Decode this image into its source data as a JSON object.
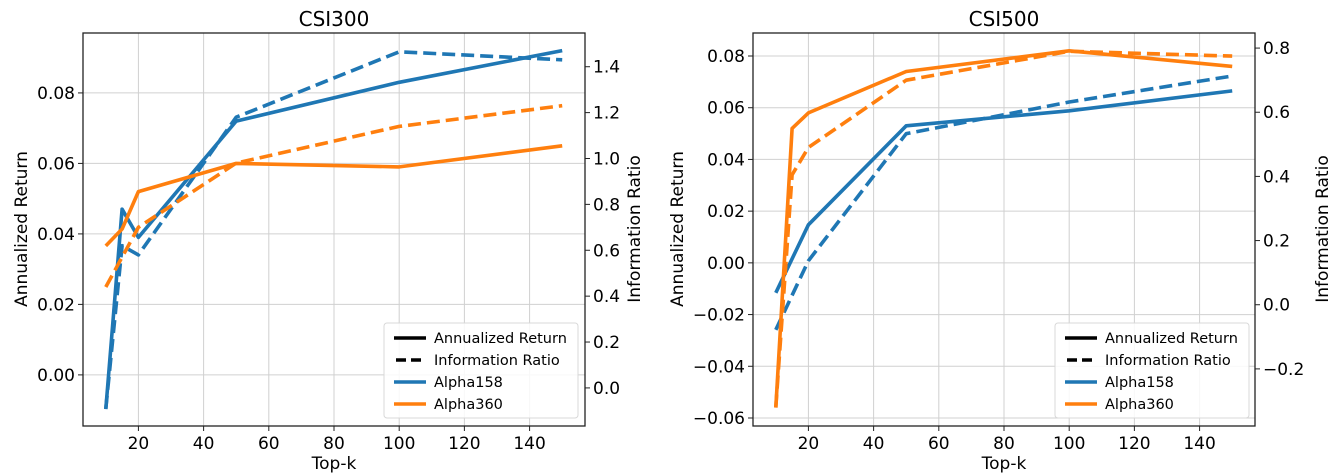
{
  "chart_data": [
    {
      "type": "line",
      "title": "CSI300",
      "xlabel": "Top-k",
      "ylabel": "Annualized Return",
      "ylabel_right": "Information Ratio",
      "xlim": [
        3,
        157
      ],
      "ylim": [
        -0.0145,
        0.097
      ],
      "ylim_right": [
        -0.166,
        1.547
      ],
      "xticks": [
        20,
        40,
        60,
        80,
        100,
        120,
        140
      ],
      "yticks": [
        0.0,
        0.02,
        0.04,
        0.06,
        0.08
      ],
      "yticks_right": [
        0.0,
        0.2,
        0.4,
        0.6,
        0.8,
        1.0,
        1.2,
        1.4
      ],
      "xtick_labels": [
        "20",
        "40",
        "60",
        "80",
        "100",
        "120",
        "140"
      ],
      "ytick_labels": [
        "0.00",
        "0.02",
        "0.04",
        "0.06",
        "0.08"
      ],
      "ytick_labels_right": [
        "0.0",
        "0.2",
        "0.4",
        "0.6",
        "0.8",
        "1.0",
        "1.2",
        "1.4"
      ],
      "grid": true,
      "legend_position": "lower-right",
      "series": [
        {
          "name": "Alpha158",
          "metric": "Annualized Return",
          "axis": "left",
          "style": "solid",
          "color": "#1f77b4",
          "x": [
            10,
            15,
            20,
            50,
            100,
            150
          ],
          "values": [
            -0.0097,
            0.047,
            0.039,
            0.072,
            0.083,
            0.092
          ]
        },
        {
          "name": "Alpha158",
          "metric": "Information Ratio",
          "axis": "right",
          "style": "dashed",
          "color": "#1f77b4",
          "x": [
            10,
            15,
            20,
            50,
            100,
            150
          ],
          "values": [
            -0.09,
            0.62,
            0.58,
            1.18,
            1.465,
            1.43
          ]
        },
        {
          "name": "Alpha360",
          "metric": "Annualized Return",
          "axis": "left",
          "style": "solid",
          "color": "#ff7f0e",
          "x": [
            10,
            15,
            20,
            50,
            100,
            150
          ],
          "values": [
            0.0366,
            0.0414,
            0.052,
            0.06,
            0.059,
            0.065
          ]
        },
        {
          "name": "Alpha360",
          "metric": "Information Ratio",
          "axis": "right",
          "style": "dashed",
          "color": "#ff7f0e",
          "x": [
            10,
            15,
            20,
            50,
            100,
            150
          ],
          "values": [
            0.44,
            0.57,
            0.7,
            0.98,
            1.14,
            1.23
          ]
        }
      ],
      "legend": [
        {
          "label": "Annualized Return",
          "style": "solid",
          "color": "#000000"
        },
        {
          "label": "Information Ratio",
          "style": "dashed",
          "color": "#000000"
        },
        {
          "label": "Alpha158",
          "style": "solid",
          "color": "#1f77b4"
        },
        {
          "label": "Alpha360",
          "style": "solid",
          "color": "#ff7f0e"
        }
      ]
    },
    {
      "type": "line",
      "title": "CSI500",
      "xlabel": "Top-k",
      "ylabel": "Annualized Return",
      "ylabel_right": "Information Ratio",
      "xlim": [
        3,
        157
      ],
      "ylim": [
        -0.0631,
        0.0889
      ],
      "ylim_right": [
        -0.378,
        0.847
      ],
      "xticks": [
        20,
        40,
        60,
        80,
        100,
        120,
        140
      ],
      "yticks": [
        -0.06,
        -0.04,
        -0.02,
        0.0,
        0.02,
        0.04,
        0.06,
        0.08
      ],
      "yticks_right": [
        -0.2,
        0.0,
        0.2,
        0.4,
        0.6,
        0.8
      ],
      "xtick_labels": [
        "20",
        "40",
        "60",
        "80",
        "100",
        "120",
        "140"
      ],
      "ytick_labels": [
        "−0.06",
        "−0.04",
        "−0.02",
        "0.00",
        "0.02",
        "0.04",
        "0.06",
        "0.08"
      ],
      "ytick_labels_right": [
        "−0.2",
        "0.0",
        "0.2",
        "0.4",
        "0.6",
        "0.8"
      ],
      "grid": true,
      "legend_position": "lower-right",
      "series": [
        {
          "name": "Alpha158",
          "metric": "Annualized Return",
          "axis": "left",
          "style": "solid",
          "color": "#1f77b4",
          "x": [
            10,
            20,
            50,
            100,
            150
          ],
          "values": [
            -0.0116,
            0.0147,
            0.053,
            0.0588,
            0.0665
          ]
        },
        {
          "name": "Alpha158",
          "metric": "Information Ratio",
          "axis": "right",
          "style": "dashed",
          "color": "#1f77b4",
          "x": [
            10,
            20,
            50,
            100,
            150
          ],
          "values": [
            -0.078,
            0.137,
            0.533,
            0.632,
            0.713
          ]
        },
        {
          "name": "Alpha360",
          "metric": "Annualized Return",
          "axis": "left",
          "style": "solid",
          "color": "#ff7f0e",
          "x": [
            10,
            15,
            20,
            50,
            100,
            150
          ],
          "values": [
            -0.056,
            0.052,
            0.058,
            0.074,
            0.082,
            0.076
          ]
        },
        {
          "name": "Alpha360",
          "metric": "Information Ratio",
          "axis": "right",
          "style": "dashed",
          "color": "#ff7f0e",
          "x": [
            10,
            15,
            20,
            50,
            100,
            150
          ],
          "values": [
            -0.32,
            0.405,
            0.49,
            0.7,
            0.79,
            0.775
          ]
        }
      ],
      "legend": [
        {
          "label": "Annualized Return",
          "style": "solid",
          "color": "#000000"
        },
        {
          "label": "Information Ratio",
          "style": "dashed",
          "color": "#000000"
        },
        {
          "label": "Alpha158",
          "style": "solid",
          "color": "#1f77b4"
        },
        {
          "label": "Alpha360",
          "style": "solid",
          "color": "#ff7f0e"
        }
      ]
    }
  ]
}
